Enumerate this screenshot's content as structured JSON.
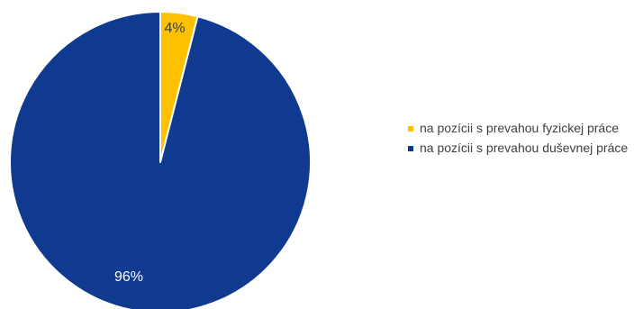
{
  "chart_data": {
    "type": "pie",
    "title": "",
    "slices": [
      {
        "label": "na pozícii s prevahou fyzickej práce",
        "value": 4,
        "display": "4%",
        "color": "#ffc000",
        "text_color": "#404040"
      },
      {
        "label": "na pozícii s prevahou duševnej práce",
        "value": 96,
        "display": "96%",
        "color": "#0f3a8f",
        "text_color": "#ffffff"
      }
    ],
    "legend": {
      "position": "right"
    }
  },
  "legend_items": [
    {
      "label": "na pozícii s prevahou fyzickej práce",
      "color": "#ffc000"
    },
    {
      "label": "na pozícii s prevahou duševnej práce",
      "color": "#0f3a8f"
    }
  ]
}
